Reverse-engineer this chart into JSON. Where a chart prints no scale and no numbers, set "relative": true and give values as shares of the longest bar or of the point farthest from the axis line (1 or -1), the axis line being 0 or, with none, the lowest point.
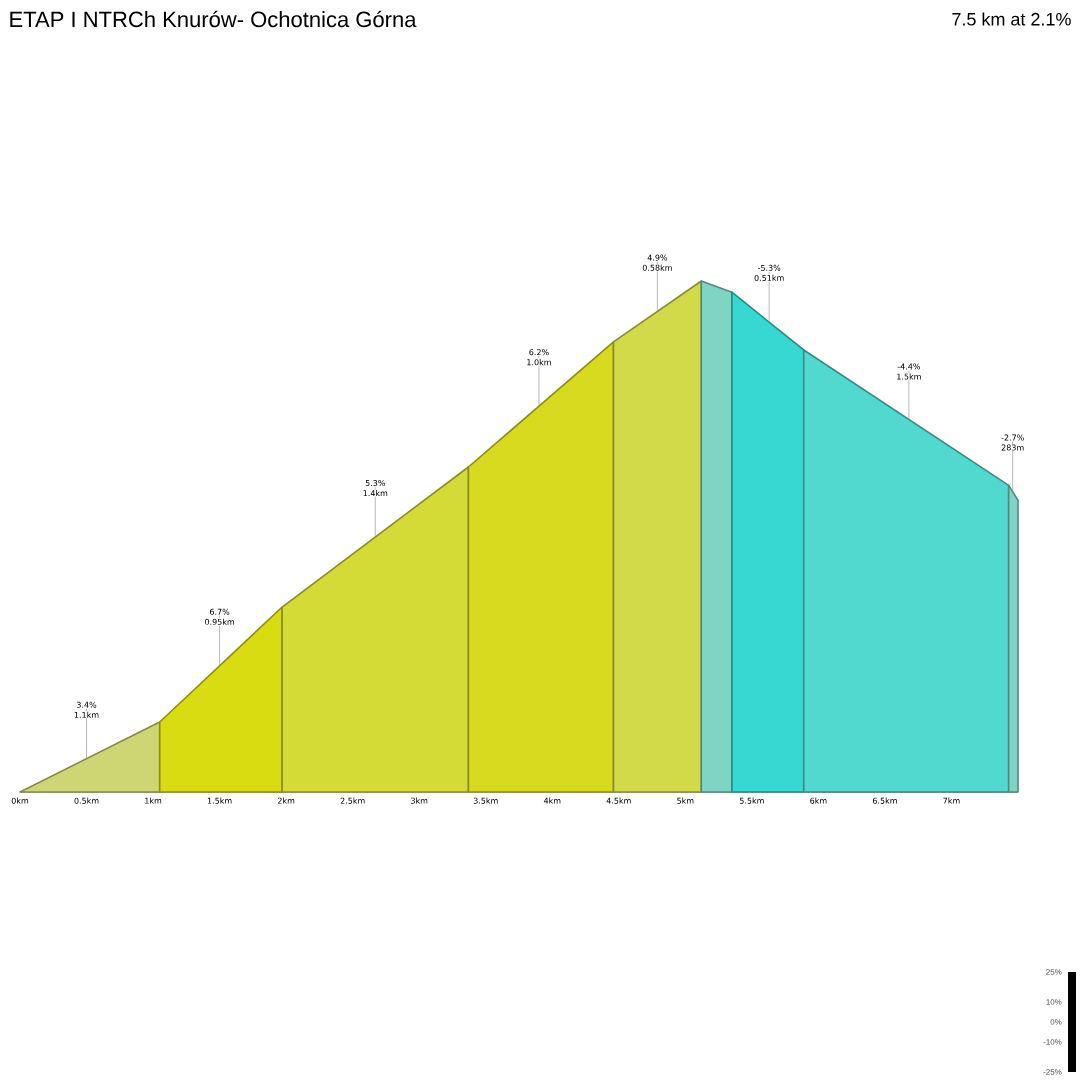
{
  "chart_data": {
    "type": "area",
    "title": "ETAP I NTRCh Knurów- Ochotnica Górna",
    "subtitle": "7.5 km at 2.1%",
    "relative": true,
    "xlim": [
      0,
      7.5
    ],
    "xticks": [
      {
        "value": 0,
        "label": "0km"
      },
      {
        "value": 0.5,
        "label": "0.5km"
      },
      {
        "value": 1,
        "label": "1km"
      },
      {
        "value": 1.5,
        "label": "1.5km"
      },
      {
        "value": 2,
        "label": "2km"
      },
      {
        "value": 2.5,
        "label": "2.5km"
      },
      {
        "value": 3,
        "label": "3km"
      },
      {
        "value": 3.5,
        "label": "3.5km"
      },
      {
        "value": 4,
        "label": "4km"
      },
      {
        "value": 4.5,
        "label": "4.5km"
      },
      {
        "value": 5,
        "label": "5km"
      },
      {
        "value": 5.5,
        "label": "5.5km"
      },
      {
        "value": 6,
        "label": "6km"
      },
      {
        "value": 6.5,
        "label": "6.5km"
      },
      {
        "value": 7,
        "label": "7km"
      }
    ],
    "series": [
      {
        "color": "#cdd673",
        "x": [
          0,
          1.05
        ],
        "values": [
          0,
          0.137
        ]
      },
      {
        "color": "#dadc12",
        "x": [
          1.05,
          1.97
        ],
        "values": [
          0.137,
          0.362
        ]
      },
      {
        "color": "#d4da36",
        "x": [
          1.97,
          3.37
        ],
        "values": [
          0.362,
          0.636
        ]
      },
      {
        "color": "#d8da20",
        "x": [
          3.37,
          4.46
        ],
        "values": [
          0.636,
          0.881
        ]
      },
      {
        "color": "#d2da4a",
        "x": [
          4.46,
          5.12
        ],
        "values": [
          0.881,
          1.0
        ]
      },
      {
        "color": "#80d4c4",
        "x": [
          5.12,
          5.35
        ],
        "values": [
          1.0,
          0.978
        ]
      },
      {
        "color": "#37d8d2",
        "x": [
          5.35,
          5.89
        ],
        "values": [
          0.978,
          0.865
        ]
      },
      {
        "color": "#52d9cf",
        "x": [
          5.89,
          7.43
        ],
        "values": [
          0.865,
          0.6
        ]
      },
      {
        "color": "#80d4c4",
        "x": [
          7.43,
          7.5
        ],
        "values": [
          0.6,
          0.571
        ]
      }
    ],
    "annotations": [
      {
        "text": "3.4%",
        "x": 0.5,
        "y": 0.065
      },
      {
        "text": "1.1km",
        "x": 0.5,
        "y": 0.065
      },
      {
        "text": "6.7%",
        "x": 1.5,
        "y": 0.247
      },
      {
        "text": "0.95km",
        "x": 1.5,
        "y": 0.247
      },
      {
        "text": "5.3%",
        "x": 2.67,
        "y": 0.499
      },
      {
        "text": "1.4km",
        "x": 2.67,
        "y": 0.499
      },
      {
        "text": "6.2%",
        "x": 3.9,
        "y": 0.755
      },
      {
        "text": "1.0km",
        "x": 3.9,
        "y": 0.755
      },
      {
        "text": "4.9%",
        "x": 4.79,
        "y": 0.94
      },
      {
        "text": "0.58km",
        "x": 4.79,
        "y": 0.94
      },
      {
        "text": "-5.3%",
        "x": 5.63,
        "y": 0.92
      },
      {
        "text": "0.51km",
        "x": 5.63,
        "y": 0.92
      },
      {
        "text": "-4.4%",
        "x": 6.68,
        "y": 0.727
      },
      {
        "text": "1.5km",
        "x": 6.68,
        "y": 0.727
      },
      {
        "text": "-2.7%",
        "x": 7.46,
        "y": 0.588
      },
      {
        "text": "283m",
        "x": 7.46,
        "y": 0.588
      },
      "25%",
      "10%",
      "0%",
      "-10%",
      "-25%"
    ]
  }
}
